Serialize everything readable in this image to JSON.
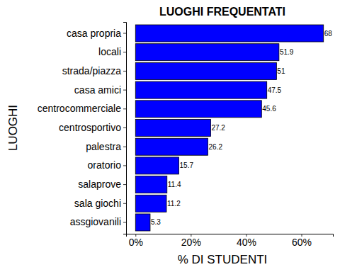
{
  "chart_data": {
    "type": "bar",
    "orientation": "horizontal",
    "title": "LUOGHI FREQUENTATI",
    "x_label": "% DI STUDENTI",
    "y_label": "LUOGHI",
    "categories": [
      "casa propria",
      "locali",
      "strada/piazza",
      "casa amici",
      "centrocommerciale",
      "centrosportivo",
      "palestra",
      "oratorio",
      "salaprove",
      "sala giochi",
      "assgiovanili"
    ],
    "values": [
      68,
      51.9,
      51,
      47.5,
      45.6,
      27.2,
      26.2,
      15.7,
      11.4,
      11.2,
      5.3
    ],
    "color": "#0000ff",
    "xlim": [
      -3.4,
      71.4
    ],
    "xticks": [
      {
        "value": 0,
        "label": "0%"
      },
      {
        "value": 20,
        "label": "20%"
      },
      {
        "value": 40,
        "label": "40%"
      },
      {
        "value": 60,
        "label": "60%"
      }
    ],
    "grid": false,
    "data_labels": true
  }
}
